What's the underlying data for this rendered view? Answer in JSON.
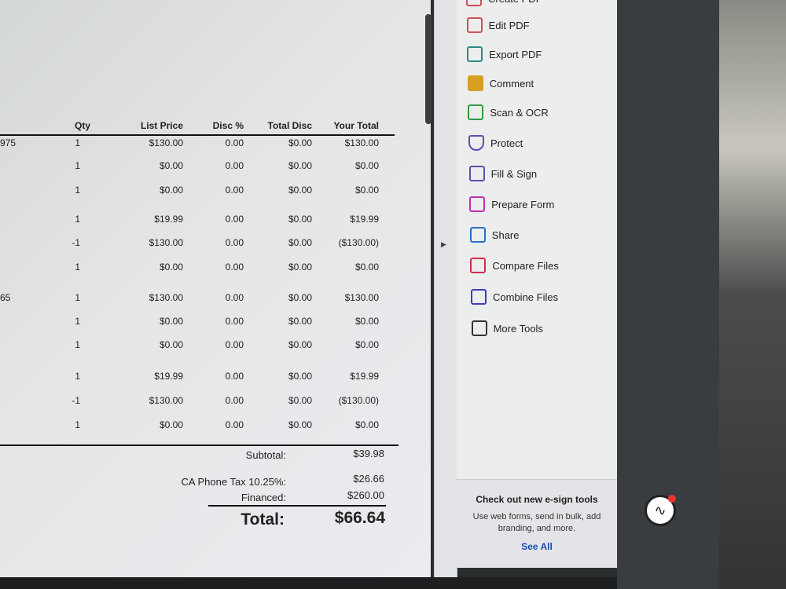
{
  "table": {
    "headers": [
      "Qty",
      "List Price",
      "Disc %",
      "Total Disc",
      "Your Total"
    ],
    "rows": [
      {
        "ref": "975",
        "qty": "1",
        "list": "$130.00",
        "disc": "0.00",
        "tdisc": "$0.00",
        "total": "$130.00"
      },
      {
        "ref": "",
        "qty": "1",
        "list": "$0.00",
        "disc": "0.00",
        "tdisc": "$0.00",
        "total": "$0.00"
      },
      {
        "ref": "",
        "qty": "1",
        "list": "$0.00",
        "disc": "0.00",
        "tdisc": "$0.00",
        "total": "$0.00"
      },
      {
        "ref": "",
        "qty": "1",
        "list": "$19.99",
        "disc": "0.00",
        "tdisc": "$0.00",
        "total": "$19.99"
      },
      {
        "ref": "",
        "qty": "-1",
        "list": "$130.00",
        "disc": "0.00",
        "tdisc": "$0.00",
        "total": "($130.00)"
      },
      {
        "ref": "",
        "qty": "1",
        "list": "$0.00",
        "disc": "0.00",
        "tdisc": "$0.00",
        "total": "$0.00"
      },
      {
        "ref": "65",
        "qty": "1",
        "list": "$130.00",
        "disc": "0.00",
        "tdisc": "$0.00",
        "total": "$130.00"
      },
      {
        "ref": "",
        "qty": "1",
        "list": "$0.00",
        "disc": "0.00",
        "tdisc": "$0.00",
        "total": "$0.00"
      },
      {
        "ref": "",
        "qty": "1",
        "list": "$0.00",
        "disc": "0.00",
        "tdisc": "$0.00",
        "total": "$0.00"
      },
      {
        "ref": "",
        "qty": "1",
        "list": "$19.99",
        "disc": "0.00",
        "tdisc": "$0.00",
        "total": "$19.99"
      },
      {
        "ref": "",
        "qty": "-1",
        "list": "$130.00",
        "disc": "0.00",
        "tdisc": "$0.00",
        "total": "($130.00)"
      },
      {
        "ref": "",
        "qty": "1",
        "list": "$0.00",
        "disc": "0.00",
        "tdisc": "$0.00",
        "total": "$0.00"
      }
    ]
  },
  "summary": {
    "subtotal_label": "Subtotal:",
    "subtotal": "$39.98",
    "tax_label": "CA Phone Tax 10.25%:",
    "tax": "$26.66",
    "financed_label": "Financed:",
    "financed": "$260.00",
    "total_label": "Total:",
    "total": "$66.64"
  },
  "tools": [
    {
      "label": "Create PDF",
      "icon": "create-pdf-icon",
      "color": "#d0505a"
    },
    {
      "label": "Edit PDF",
      "icon": "edit-pdf-icon",
      "color": "#d0505a"
    },
    {
      "label": "Export PDF",
      "icon": "export-pdf-icon",
      "color": "#2a8a8a"
    },
    {
      "label": "Comment",
      "icon": "comment-icon",
      "color": "#d8a020"
    },
    {
      "label": "Scan & OCR",
      "icon": "scan-icon",
      "color": "#2e9a48"
    },
    {
      "label": "Protect",
      "icon": "shield-icon",
      "color": "#5a50b0"
    },
    {
      "label": "Fill & Sign",
      "icon": "sign-icon",
      "color": "#5a50b0"
    },
    {
      "label": "Prepare Form",
      "icon": "form-icon",
      "color": "#c030b0"
    },
    {
      "label": "Share",
      "icon": "share-icon",
      "color": "#2a70c8"
    },
    {
      "label": "Compare Files",
      "icon": "compare-icon",
      "color": "#d03048"
    },
    {
      "label": "Combine Files",
      "icon": "combine-icon",
      "color": "#3a40c0"
    },
    {
      "label": "More Tools",
      "icon": "wrench-icon",
      "color": "#333333"
    }
  ],
  "promo": {
    "title": "Check out new e-sign tools",
    "body": "Use web forms, send in bulk, add branding, and more.",
    "link": "See All"
  }
}
